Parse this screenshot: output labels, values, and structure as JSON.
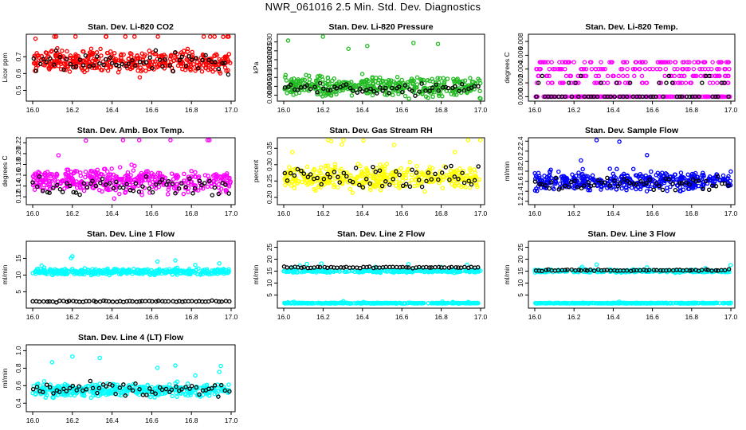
{
  "title": "NWR_061016  2.5 Min. Std. Dev. Diagnostics",
  "colors": {
    "black": "#000000",
    "red": "#ff0000",
    "green": "#22bb22",
    "magenta": "#ff00ff",
    "yellow": "#ffff00",
    "blue": "#0000ff",
    "cyan": "#00ffff"
  },
  "chart_data": [
    {
      "type": "scatter",
      "title": "Stan. Dev. Li-820 CO2",
      "ylabel": "Licor ppm",
      "xlim": [
        16.0,
        17.0
      ],
      "xticks": [
        "16.0",
        "16.2",
        "16.4",
        "16.6",
        "16.8",
        "17.0"
      ],
      "ylim": [
        0.45,
        0.82
      ],
      "yticks": [
        "0.5",
        "0.6",
        "0.7"
      ],
      "series": [
        {
          "color": "red",
          "baseline": 0.67,
          "spread": 0.045,
          "n": 420
        },
        {
          "color": "black",
          "baseline": 0.66,
          "spread": 0.045,
          "n": 60
        }
      ]
    },
    {
      "type": "scatter",
      "title": "Stan. Dev. Li-820 Pressure",
      "ylabel": "kPa",
      "xlim": [
        16.0,
        17.0
      ],
      "xticks": [
        "16.0",
        "16.2",
        "16.4",
        "16.6",
        "16.8",
        "17.0"
      ],
      "ylim": [
        -0.002,
        0.033
      ],
      "yticks": [
        "0.000",
        "0.005",
        "0.010",
        "0.015",
        "0.020",
        "0.025",
        "0.030"
      ],
      "series": [
        {
          "color": "green",
          "baseline": 0.005,
          "spread": 0.004,
          "n": 420
        },
        {
          "color": "black",
          "baseline": 0.004,
          "spread": 0.003,
          "n": 60
        }
      ]
    },
    {
      "type": "scatter",
      "title": "Stan. Dev. Li-820 Temp.",
      "ylabel": "degrees C",
      "xlim": [
        16.0,
        17.0
      ],
      "xticks": [
        "16.0",
        "16.2",
        "16.4",
        "16.6",
        "16.8",
        "17.0"
      ],
      "ylim": [
        -0.0003,
        0.0087
      ],
      "yticks": [
        "0.000",
        "0.002",
        "0.004",
        "0.006",
        "0.008"
      ],
      "series": [
        {
          "color": "magenta",
          "levels": [
            0.0,
            0.002,
            0.003,
            0.004,
            0.005
          ],
          "n": 420
        },
        {
          "color": "black",
          "levels": [
            0.0,
            0.002,
            0.003
          ],
          "n": 60
        }
      ]
    },
    {
      "type": "scatter",
      "title": "Stan. Dev. Amb. Box Temp.",
      "ylabel": "degrees C",
      "xlim": [
        16.0,
        17.0
      ],
      "xticks": [
        "16.0",
        "16.2",
        "16.4",
        "16.6",
        "16.8",
        "17.0"
      ],
      "ylim": [
        0.11,
        0.225
      ],
      "yticks": [
        "0.12",
        "0.14",
        "0.16",
        "0.18",
        "0.20",
        "0.22"
      ],
      "series": [
        {
          "color": "magenta",
          "baseline": 0.15,
          "spread": 0.015,
          "n": 420
        },
        {
          "color": "black",
          "baseline": 0.14,
          "spread": 0.012,
          "n": 60
        }
      ]
    },
    {
      "type": "scatter",
      "title": "Stan. Dev. Gas Stream RH",
      "ylabel": "percent",
      "xlim": [
        16.0,
        17.0
      ],
      "xticks": [
        "16.0",
        "16.2",
        "16.4",
        "16.6",
        "16.8",
        "17.0"
      ],
      "ylim": [
        0.185,
        0.375
      ],
      "yticks": [
        "0.20",
        "0.25",
        "0.30",
        "0.35"
      ],
      "series": [
        {
          "color": "yellow",
          "baseline": 0.26,
          "spread": 0.025,
          "n": 420
        },
        {
          "color": "black",
          "baseline": 0.26,
          "spread": 0.025,
          "n": 60
        }
      ]
    },
    {
      "type": "scatter",
      "title": "Stan. Dev. Sample Flow",
      "ylabel": "ml/min",
      "xlim": [
        16.0,
        17.0
      ],
      "xticks": [
        "16.0",
        "16.2",
        "16.4",
        "16.6",
        "16.8",
        "17.0"
      ],
      "ylim": [
        1.18,
        2.42
      ],
      "yticks": [
        "1.2",
        "1.4",
        "1.6",
        "1.8",
        "2.0",
        "2.2",
        "2.4"
      ],
      "series": [
        {
          "color": "blue",
          "baseline": 1.6,
          "spread": 0.13,
          "n": 420
        },
        {
          "color": "black",
          "baseline": 1.55,
          "spread": 0.1,
          "n": 60
        }
      ]
    },
    {
      "type": "scatter",
      "title": "Stan. Dev. Line 1 Flow",
      "ylabel": "ml/min",
      "xlim": [
        16.0,
        17.0
      ],
      "xticks": [
        "16.0",
        "16.2",
        "16.4",
        "16.6",
        "16.8",
        "17.0"
      ],
      "ylim": [
        0.8,
        19.4
      ],
      "yticks": [
        "5",
        "10",
        "15"
      ],
      "series": [
        {
          "color": "cyan",
          "baseline": 11.0,
          "spread": 0.6,
          "n": 420
        },
        {
          "color": "black",
          "baseline": 2.1,
          "spread": 0.15,
          "n": 60
        }
      ]
    },
    {
      "type": "scatter",
      "title": "Stan. Dev. Line 2 Flow",
      "ylabel": "ml/min",
      "xlim": [
        16.0,
        17.0
      ],
      "xticks": [
        "16.0",
        "16.2",
        "16.4",
        "16.6",
        "16.8",
        "17.0"
      ],
      "ylim": [
        0.5,
        26.5
      ],
      "yticks": [
        "5",
        "10",
        "15",
        "20",
        "25"
      ],
      "series": [
        {
          "color": "cyan",
          "baseline": 15.0,
          "spread": 0.4,
          "n": 300
        },
        {
          "color": "cyan",
          "baseline": 1.6,
          "spread": 0.1,
          "n": 300
        },
        {
          "color": "black",
          "baseline": 16.6,
          "spread": 0.2,
          "n": 60
        }
      ]
    },
    {
      "type": "scatter",
      "title": "Stan. Dev. Line 3 Flow",
      "ylabel": "ml/min",
      "xlim": [
        16.0,
        17.0
      ],
      "xticks": [
        "16.0",
        "16.2",
        "16.4",
        "16.6",
        "16.8",
        "17.0"
      ],
      "ylim": [
        0.5,
        26.5
      ],
      "yticks": [
        "5",
        "10",
        "15",
        "20",
        "25"
      ],
      "series": [
        {
          "color": "cyan",
          "baseline": 15.0,
          "spread": 0.4,
          "n": 300
        },
        {
          "color": "cyan",
          "baseline": 1.6,
          "spread": 0.1,
          "n": 300
        },
        {
          "color": "black",
          "baseline": 15.4,
          "spread": 0.25,
          "n": 60
        }
      ]
    },
    {
      "type": "scatter",
      "title": "Stan. Dev. Line 4 (LT) Flow",
      "ylabel": "ml/min",
      "xlim": [
        16.0,
        17.0
      ],
      "xticks": [
        "16.0",
        "16.2",
        "16.4",
        "16.6",
        "16.8",
        "17.0"
      ],
      "ylim": [
        0.33,
        1.04
      ],
      "yticks": [
        "0.4",
        "0.6",
        "0.8",
        "1.0"
      ],
      "series": [
        {
          "color": "cyan",
          "baseline": 0.55,
          "spread": 0.05,
          "n": 420
        },
        {
          "color": "black",
          "baseline": 0.55,
          "spread": 0.06,
          "n": 60
        }
      ]
    }
  ]
}
